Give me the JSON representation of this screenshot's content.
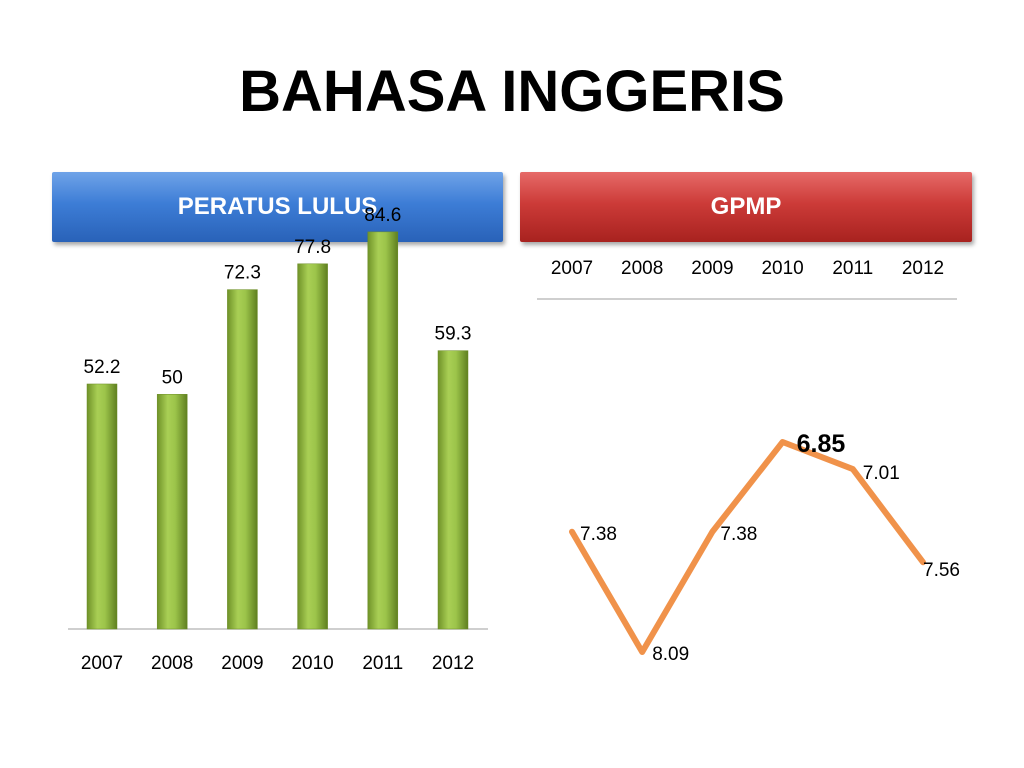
{
  "title": "BAHASA INGGERIS",
  "colors": {
    "left_header": "#3d7dd6",
    "right_header": "#cc3b38",
    "bar": "#8db33a",
    "line": "#f0924a"
  },
  "chart_data": [
    {
      "type": "bar",
      "title": "PERATUS LULUS",
      "categories": [
        "2007",
        "2008",
        "2009",
        "2010",
        "2011",
        "2012"
      ],
      "values": [
        52.2,
        50,
        72.3,
        77.8,
        84.6,
        59.3
      ],
      "value_labels": [
        "52.2",
        "50",
        "72.3",
        "77.8",
        "84.6",
        "59.3"
      ],
      "ylim": [
        0,
        100
      ],
      "grid": false,
      "legend": "none"
    },
    {
      "type": "line",
      "title": "GPMP",
      "categories": [
        "2007",
        "2008",
        "2009",
        "2010",
        "2011",
        "2012"
      ],
      "values": [
        7.38,
        8.09,
        7.38,
        6.85,
        7.01,
        7.56
      ],
      "value_labels": [
        "7.38",
        "8.09",
        "7.38",
        "6.85",
        "7.01",
        "7.56"
      ],
      "highlighted_label": "6.85",
      "y_axis": "inverted",
      "ylim": [
        6.7,
        8.2
      ],
      "axis_position": "top",
      "grid": false,
      "legend": "none"
    }
  ]
}
